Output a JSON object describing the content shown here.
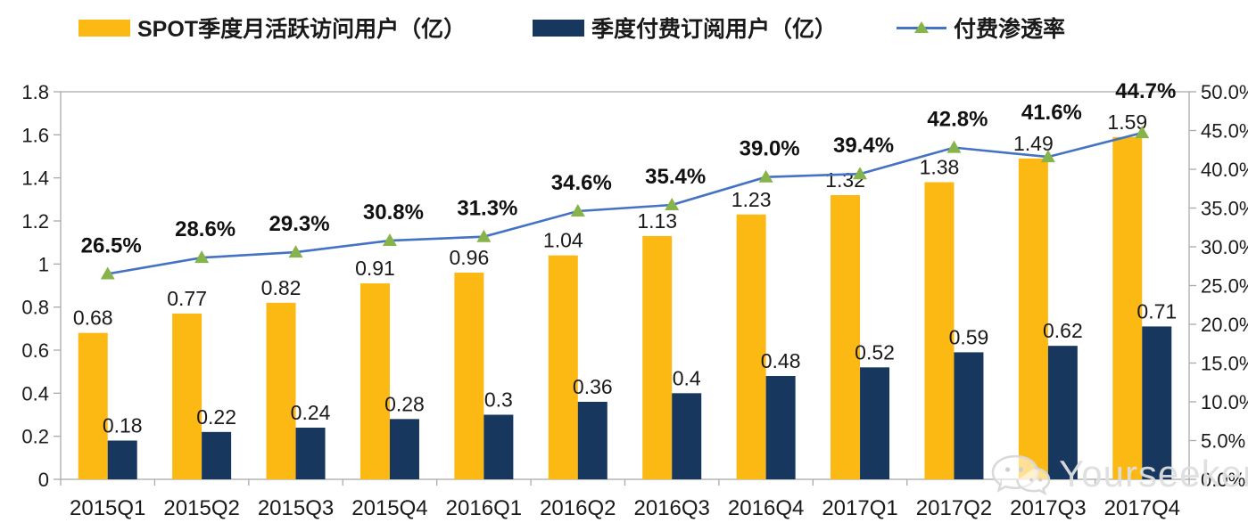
{
  "legend": {
    "items": [
      {
        "label": "SPOT季度月活跃访问用户（亿）",
        "swatch": "bar",
        "color": "#FCB813"
      },
      {
        "label": "季度付费订阅用户（亿）",
        "swatch": "bar",
        "color": "#17375E"
      },
      {
        "label": "付费渗透率",
        "swatch": "line-triangle",
        "color": "#4472C4",
        "marker_color": "#86B44B"
      }
    ]
  },
  "watermark": {
    "text": "Yourseeker",
    "icon": "wechat-icon"
  },
  "colors": {
    "mau_bar": "#FCB813",
    "paid_bar": "#17375E",
    "line": "#4472C4",
    "marker": "#86B44B",
    "axis": "#ABABAB",
    "text": "#1a1a1a"
  },
  "chart_data": {
    "type": "bar",
    "subtype": "combo-bar-line",
    "title": "",
    "xlabel": "",
    "ylabel_left": "",
    "ylabel_right": "",
    "grid": false,
    "legend_position": "top",
    "categories": [
      "2015Q1",
      "2015Q2",
      "2015Q3",
      "2015Q4",
      "2016Q1",
      "2016Q2",
      "2016Q3",
      "2016Q4",
      "2017Q1",
      "2017Q2",
      "2017Q3",
      "2017Q4"
    ],
    "series": [
      {
        "name": "SPOT季度月活跃访问用户（亿）",
        "type": "bar",
        "axis": "left",
        "color": "#FCB813",
        "values": [
          0.68,
          0.77,
          0.82,
          0.91,
          0.96,
          1.04,
          1.13,
          1.23,
          1.32,
          1.38,
          1.49,
          1.59
        ],
        "labels": [
          "0.68",
          "0.77",
          "0.82",
          "0.91",
          "0.96",
          "1.04",
          "1.13",
          "1.23",
          "1.32",
          "1.38",
          "1.49",
          "1.59"
        ]
      },
      {
        "name": "季度付费订阅用户（亿）",
        "type": "bar",
        "axis": "left",
        "color": "#17375E",
        "values": [
          0.18,
          0.22,
          0.24,
          0.28,
          0.3,
          0.36,
          0.4,
          0.48,
          0.52,
          0.59,
          0.62,
          0.71
        ],
        "labels": [
          "0.18",
          "0.22",
          "0.24",
          "0.28",
          "0.3",
          "0.36",
          "0.4",
          "0.48",
          "0.52",
          "0.59",
          "0.62",
          "0.71"
        ]
      },
      {
        "name": "付费渗透率",
        "type": "line",
        "axis": "right",
        "color": "#4472C4",
        "marker": "triangle",
        "marker_color": "#86B44B",
        "values": [
          26.5,
          28.6,
          29.3,
          30.8,
          31.3,
          34.6,
          35.4,
          39.0,
          39.4,
          42.8,
          41.6,
          44.7
        ],
        "labels": [
          "26.5%",
          "28.6%",
          "29.3%",
          "30.8%",
          "31.3%",
          "34.6%",
          "35.4%",
          "39.0%",
          "39.4%",
          "42.8%",
          "41.6%",
          "44.7%"
        ]
      }
    ],
    "left_axis": {
      "min": 0,
      "max": 1.8,
      "step": 0.2,
      "ticks": [
        "0",
        "0.2",
        "0.4",
        "0.6",
        "0.8",
        "1",
        "1.2",
        "1.4",
        "1.6",
        "1.8"
      ]
    },
    "right_axis": {
      "min": 0,
      "max": 50,
      "step": 5,
      "ticks": [
        "0.0%",
        "5.0%",
        "10.0%",
        "15.0%",
        "20.0%",
        "25.0%",
        "30.0%",
        "35.0%",
        "40.0%",
        "45.0%",
        "50.0%"
      ]
    }
  }
}
